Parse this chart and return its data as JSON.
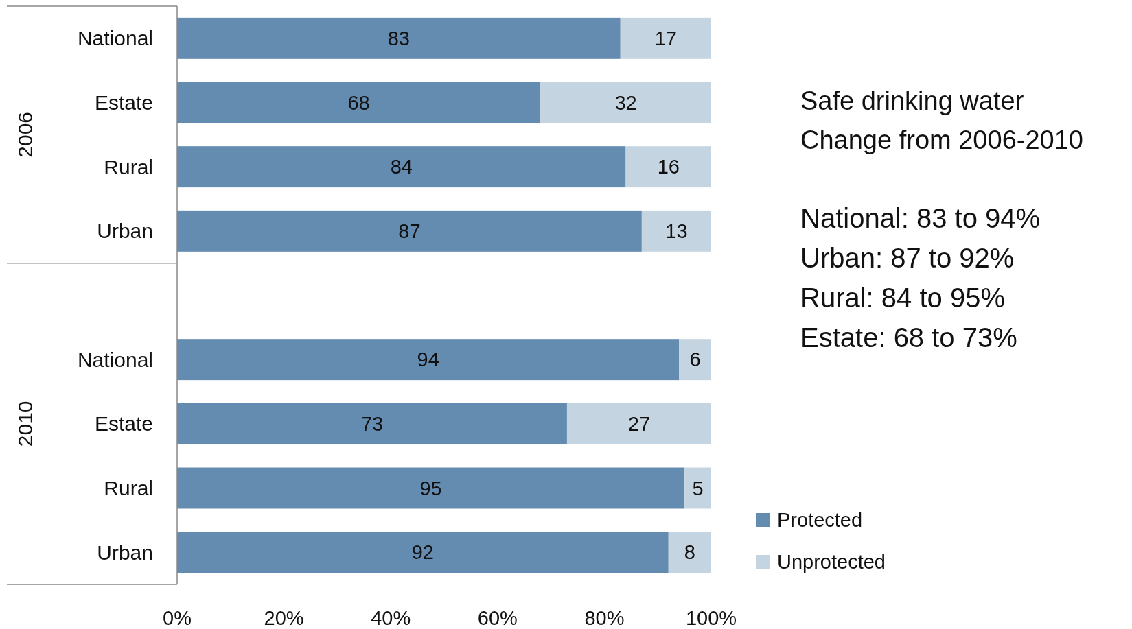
{
  "chart_data": {
    "type": "bar",
    "orientation": "horizontal",
    "stacked": true,
    "categories": [
      "National",
      "Estate",
      "Rural",
      "Urban",
      null,
      "National",
      "Estate",
      "Rural",
      "Urban"
    ],
    "series": [
      {
        "name": "Protected",
        "color": "#648bb0",
        "values": [
          83,
          68,
          84,
          87,
          null,
          94,
          73,
          95,
          92
        ]
      },
      {
        "name": "Unprotected",
        "color": "#c5d4e1",
        "values": [
          17,
          32,
          16,
          13,
          null,
          6,
          27,
          5,
          8
        ]
      }
    ],
    "xlim": [
      0,
      100
    ],
    "xticks": [
      {
        "value": 0,
        "label": "0%"
      },
      {
        "value": 20,
        "label": "20%"
      },
      {
        "value": 40,
        "label": "40%"
      },
      {
        "value": 60,
        "label": "60%"
      },
      {
        "value": 80,
        "label": "80%"
      },
      {
        "value": 100,
        "label": "100%"
      }
    ],
    "data_labels": true,
    "legend": "bottom right",
    "grid": false,
    "annotations": [
      "2006",
      "2010",
      "Safe drinking water",
      "Change from 2006-2010",
      "National: 83 to 94%",
      "Urban: 87 to 92%",
      "Rural: 84 to 95%",
      "Estate: 68 to 73%"
    ]
  }
}
